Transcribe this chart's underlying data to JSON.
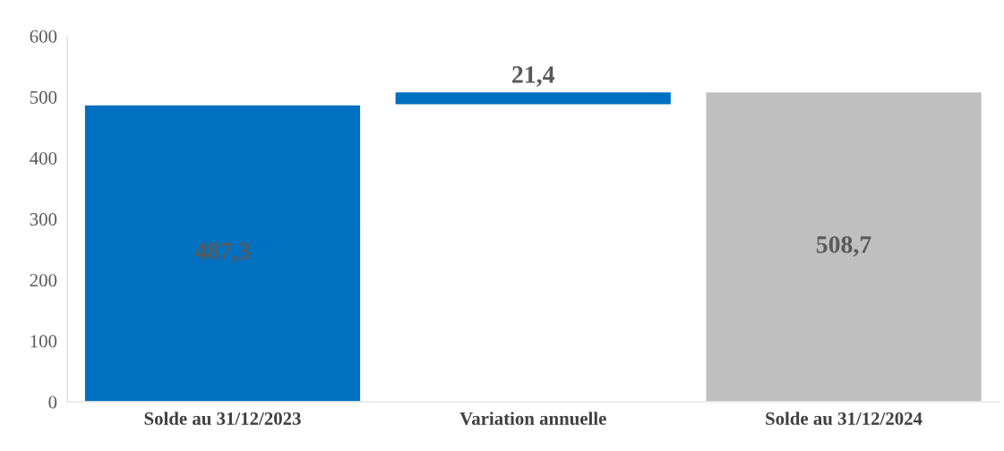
{
  "chart_data": {
    "type": "bar",
    "categories": [
      "Solde au 31/12/2023",
      "Variation annuelle",
      "Solde au 31/12/2024"
    ],
    "values": [
      487.3,
      21.4,
      508.7
    ],
    "base": [
      0,
      487.3,
      0
    ],
    "colors": [
      "#0070c0",
      "#0070c0",
      "#bfbfbf"
    ],
    "value_labels": [
      "487,3",
      "21,4",
      "508,7"
    ],
    "ylim": [
      0,
      600
    ],
    "yticks": [
      0,
      100,
      200,
      300,
      400,
      500,
      600
    ],
    "grid": false,
    "legend": false
  }
}
